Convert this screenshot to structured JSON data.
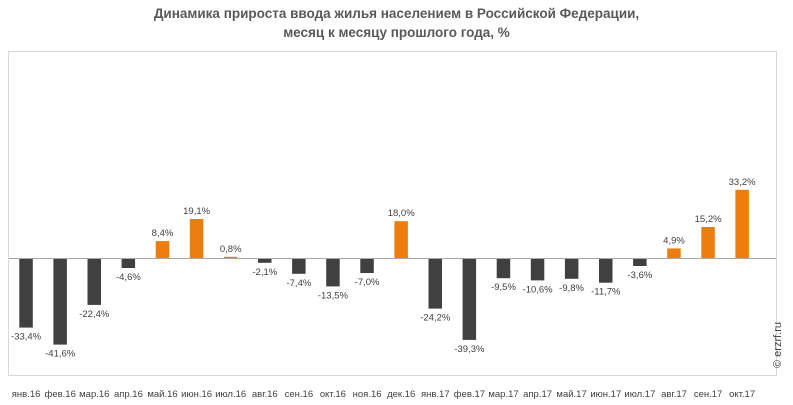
{
  "chart_data": {
    "type": "bar",
    "title_line1": "Динамика прироста ввода жилья населением в Российской Федерации,",
    "title_line2": "месяц к месяцу прошлого года, %",
    "categories": [
      "янв.16",
      "фев.16",
      "мар.16",
      "апр.16",
      "май.16",
      "июн.16",
      "июл.16",
      "авг.16",
      "сен.16",
      "окт.16",
      "ноя.16",
      "дек.16",
      "янв.17",
      "фев.17",
      "мар.17",
      "апр.17",
      "май.17",
      "июн.17",
      "июл.17",
      "авг.17",
      "сен.17",
      "окт.17"
    ],
    "values": [
      -33.4,
      -41.6,
      -22.4,
      -4.6,
      8.4,
      19.1,
      0.8,
      -2.1,
      -7.4,
      -13.5,
      -7.0,
      18.0,
      -24.2,
      -39.3,
      -9.5,
      -10.6,
      -9.8,
      -11.7,
      -3.6,
      4.9,
      15.2,
      33.2
    ],
    "value_labels": [
      "-33,4%",
      "-41,6%",
      "-22,4%",
      "-4,6%",
      "8,4%",
      "19,1%",
      "0,8%",
      "-2,1%",
      "-7,4%",
      "-13,5%",
      "-7,0%",
      "18,0%",
      "-24,2%",
      "-39,3%",
      "-9,5%",
      "-10,6%",
      "-9,8%",
      "-11,7%",
      "-3,6%",
      "4,9%",
      "15,2%",
      "33,2%"
    ],
    "colors": {
      "positive": "#ed7d0f",
      "negative": "#404040",
      "frame": "#d9d9d9",
      "axis": "#a6a6a6",
      "text": "#404040"
    },
    "grid": false,
    "legend": "none"
  },
  "watermark": "© erzrf.ru"
}
